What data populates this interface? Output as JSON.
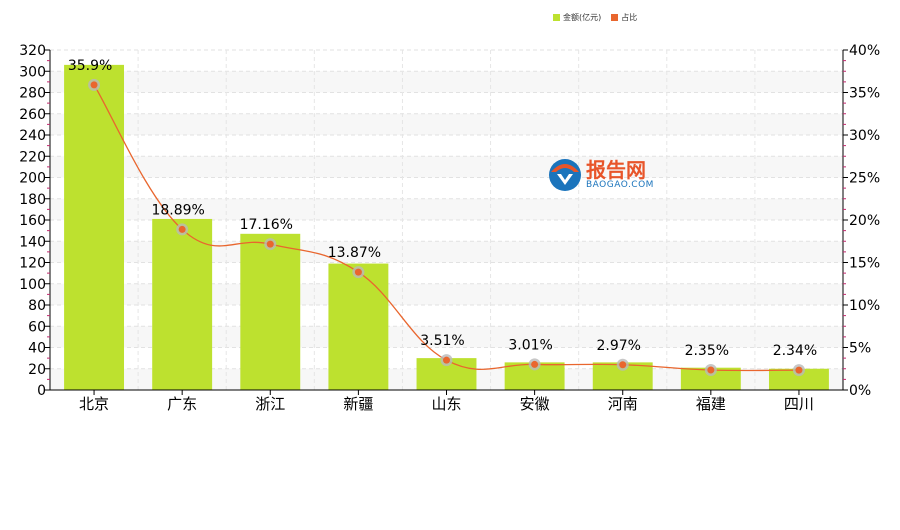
{
  "legend": {
    "amount_label": "金额(亿元)",
    "share_label": "占比"
  },
  "logo": {
    "main_text": "报告网",
    "sub_text": "BAOGAO.COM"
  },
  "colors": {
    "bar": "#bde12f",
    "line": "#e9662e",
    "marker": "#e9662e"
  },
  "chart_data": {
    "type": "bar",
    "categories": [
      "北京",
      "广东",
      "浙江",
      "新疆",
      "山东",
      "安徽",
      "河南",
      "福建",
      "四川"
    ],
    "series": [
      {
        "name": "金额(亿元)",
        "type": "bar",
        "axis": "left",
        "values": [
          306,
          161,
          147,
          119,
          30,
          26,
          26,
          21,
          20
        ]
      },
      {
        "name": "占比",
        "type": "line",
        "axis": "right",
        "smooth": true,
        "values": [
          35.9,
          18.89,
          17.16,
          13.87,
          3.51,
          3.01,
          2.97,
          2.35,
          2.34
        ],
        "data_labels": [
          "35.9%",
          "18.89%",
          "17.16%",
          "13.87%",
          "3.51%",
          "3.01%",
          "2.97%",
          "2.35%",
          "2.34%"
        ]
      }
    ],
    "left_axis": {
      "ylim": [
        0,
        320
      ],
      "ticks": [
        "0",
        "20",
        "40",
        "60",
        "80",
        "100",
        "120",
        "140",
        "160",
        "180",
        "200",
        "220",
        "240",
        "260",
        "280",
        "300",
        "320"
      ]
    },
    "right_axis": {
      "ylim": [
        0,
        40
      ],
      "ticks": [
        "0%",
        "5%",
        "10%",
        "15%",
        "20%",
        "25%",
        "30%",
        "35%",
        "40%"
      ]
    },
    "grid": true,
    "legend_position": "top-right"
  }
}
